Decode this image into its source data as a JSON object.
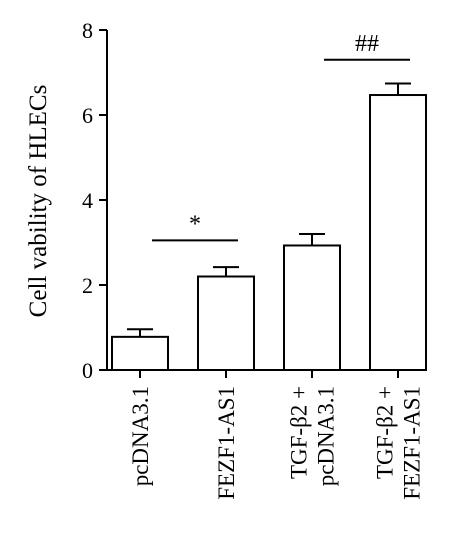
{
  "chart_data": {
    "type": "bar",
    "title": "",
    "xlabel": "",
    "ylabel": "Cell vability of HLECs",
    "ylim": [
      0,
      8
    ],
    "yticks": [
      0,
      2,
      4,
      6,
      8
    ],
    "grid": false,
    "categories": [
      [
        "pcDNA3.1"
      ],
      [
        "FEZF1-AS1"
      ],
      [
        "TGF-β2 +",
        "pcDNA3.1"
      ],
      [
        "TGF-β2 +",
        "FEZF1-AS1"
      ]
    ],
    "values": [
      0.78,
      2.2,
      2.93,
      6.47
    ],
    "errors": [
      0.18,
      0.22,
      0.27,
      0.27
    ],
    "bar_fill": "#ffffff",
    "bar_stroke": "#000000",
    "annotations": [
      {
        "text": "*",
        "from": 0,
        "to": 1,
        "y": 3.05
      },
      {
        "text": "##",
        "from": 2,
        "to": 3,
        "y": 7.3
      }
    ]
  }
}
